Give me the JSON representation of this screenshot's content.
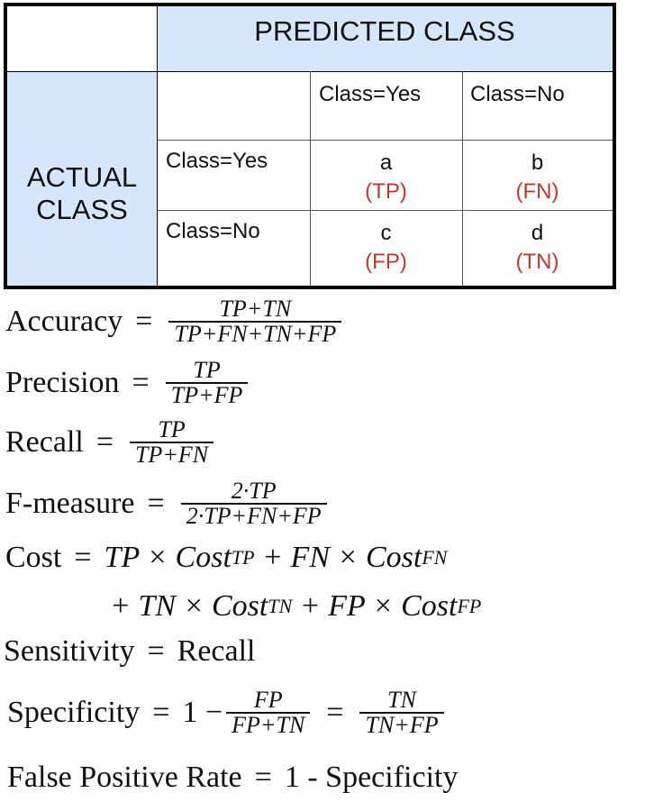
{
  "matrix": {
    "predicted_header": "PREDICTED CLASS",
    "actual_header": [
      "ACTUAL",
      "CLASS"
    ],
    "col_labels": [
      "Class=Yes",
      "Class=No"
    ],
    "row_labels": [
      "Class=Yes",
      "Class=No"
    ],
    "cells": [
      [
        {
          "letter": "a",
          "tag": "(TP)"
        },
        {
          "letter": "b",
          "tag": "(FN)"
        }
      ],
      [
        {
          "letter": "c",
          "tag": "(FP)"
        },
        {
          "letter": "d",
          "tag": "(TN)"
        }
      ]
    ],
    "colors": {
      "header_bg": "#d6e6fb",
      "tag_color": "#c0392b",
      "border": "#000000"
    }
  },
  "formulas": {
    "accuracy": {
      "label": "Accuracy",
      "num": "TP+TN",
      "den": "TP+FN+TN+FP"
    },
    "precision": {
      "label": "Precision",
      "num": "TP",
      "den": "TP+FP"
    },
    "recall": {
      "label": "Recall",
      "num": "TP",
      "den": "TP+FN"
    },
    "fmeasure": {
      "label": "F-measure",
      "num": "2·TP",
      "den": "2·TP+FN+FP"
    },
    "cost": {
      "label": "Cost",
      "line1": "TP × Cost",
      "sub1": "TP",
      "line1b": " + FN × Cost",
      "sub1b": "FN",
      "line2": "+ TN × Cost",
      "sub2": "TN",
      "line2b": " + FP × Cost",
      "sub2b": "FP"
    },
    "sensitivity": {
      "label": "Sensitivity",
      "rhs": "Recall"
    },
    "specificity": {
      "label": "Specificity",
      "one": "1 −",
      "num1": "FP",
      "den1": "FP+TN",
      "num2": "TN",
      "den2": "TN+FP"
    },
    "fpr": {
      "label": "False Positive Rate",
      "rhs": "1 - Specificity"
    },
    "equals": "="
  }
}
